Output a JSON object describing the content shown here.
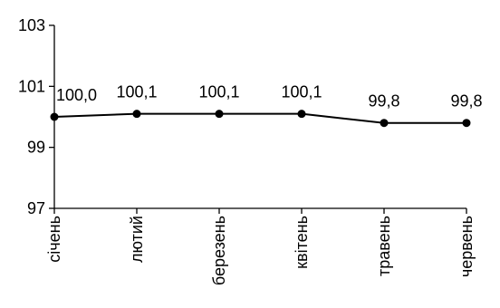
{
  "chart_data": {
    "type": "line",
    "title": "",
    "xlabel": "",
    "ylabel": "",
    "categories": [
      "січень",
      "лютий",
      "березень",
      "квітень",
      "травень",
      "червень"
    ],
    "series": [
      {
        "values": [
          100.0,
          100.1,
          100.1,
          100.1,
          99.8,
          99.8
        ],
        "data_labels": [
          "100,0",
          "100,1",
          "100,1",
          "100,1",
          "99,8",
          "99,8"
        ],
        "color": "#000000",
        "marker": "circle"
      }
    ],
    "ylim": [
      97,
      103
    ],
    "yticks": [
      97,
      99,
      101,
      103
    ],
    "ytick_labels": [
      "97",
      "99",
      "101",
      "103"
    ],
    "grid": false,
    "legend": "none",
    "category_label_orientation": "vertical"
  }
}
